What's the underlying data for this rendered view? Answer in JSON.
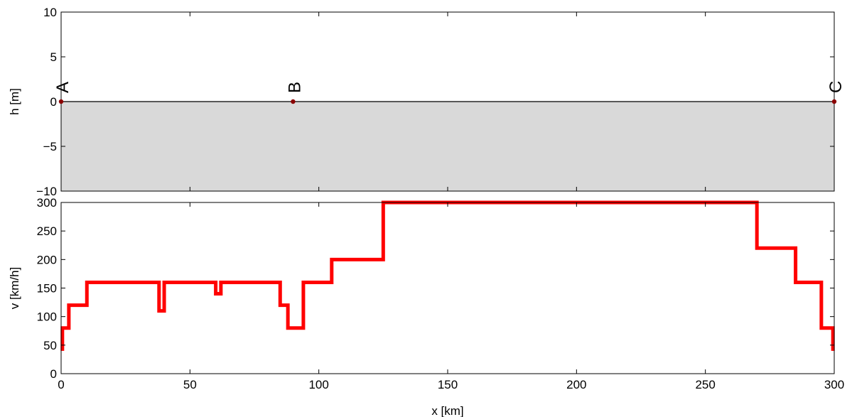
{
  "chart_data": [
    {
      "type": "area",
      "ylabel": "h [m]",
      "xlim": [
        0,
        300
      ],
      "ylim": [
        -10,
        10
      ],
      "x_ticks": [
        0,
        50,
        100,
        150,
        200,
        250,
        300
      ],
      "y_ticks": [
        -10,
        -5,
        0,
        5,
        10
      ],
      "y_tick_labels": [
        "−10",
        "−5",
        "0",
        "5",
        "10"
      ],
      "fill": {
        "from": -10,
        "to": 0,
        "color": "#d9d9d9"
      },
      "line": {
        "y": 0,
        "color": "#000000"
      },
      "stations": [
        {
          "label": "A",
          "x": 0,
          "y": 0
        },
        {
          "label": "B",
          "x": 90,
          "y": 0
        },
        {
          "label": "C",
          "x": 300,
          "y": 0
        }
      ],
      "station_color": "#8b0000"
    },
    {
      "type": "line",
      "xlabel": "x [km]",
      "ylabel": "v [km/h]",
      "xlim": [
        0,
        300
      ],
      "ylim": [
        0,
        300
      ],
      "x_ticks": [
        0,
        50,
        100,
        150,
        200,
        250,
        300
      ],
      "y_ticks": [
        0,
        50,
        100,
        150,
        200,
        250,
        300
      ],
      "series": [
        {
          "color": "#ff0000",
          "x": [
            0.5,
            0.5,
            1,
            1,
            3,
            3,
            10,
            10,
            38,
            38,
            40,
            40,
            60,
            60,
            62,
            62,
            85,
            85,
            88,
            88,
            94,
            94,
            105,
            105,
            125,
            125,
            270,
            270,
            285,
            285,
            295,
            295,
            299.5,
            299.5
          ],
          "y": [
            40,
            80,
            80,
            80,
            80,
            120,
            120,
            160,
            160,
            110,
            110,
            160,
            160,
            140,
            140,
            160,
            160,
            120,
            120,
            80,
            80,
            160,
            160,
            200,
            200,
            300,
            300,
            220,
            220,
            160,
            160,
            80,
            80,
            40
          ]
        }
      ]
    }
  ]
}
